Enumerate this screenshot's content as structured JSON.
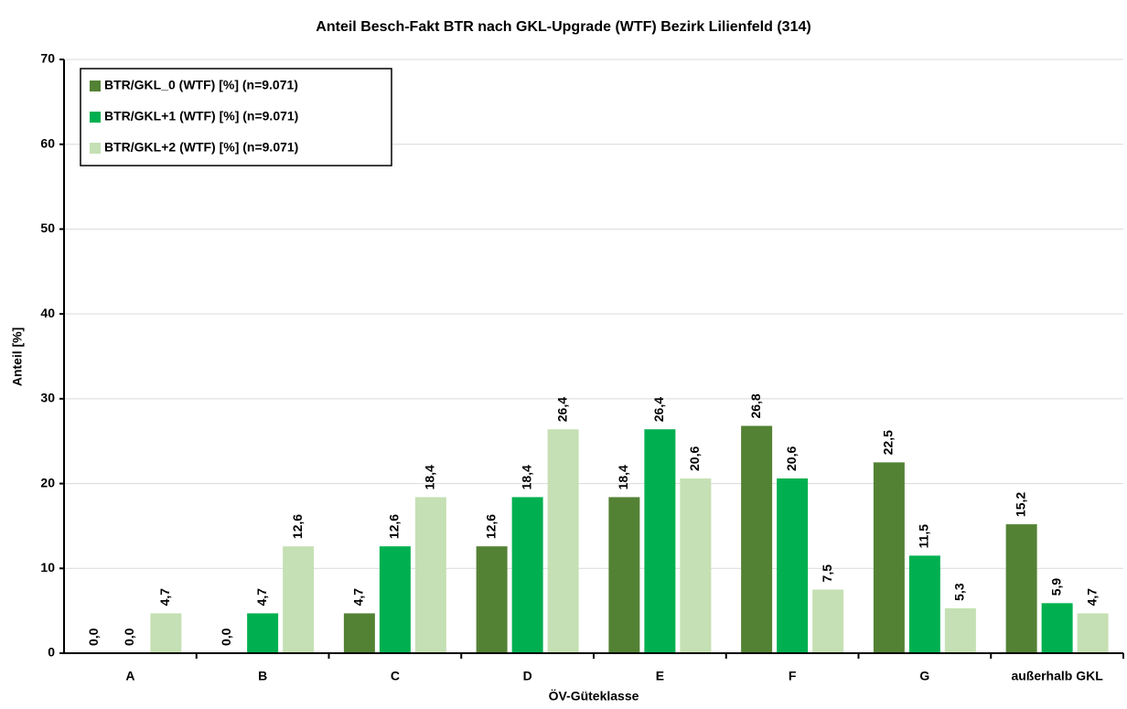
{
  "chart_data": {
    "type": "bar",
    "title": "Anteil Besch-Fakt BTR nach GKL-Upgrade (WTF) Bezirk Lilienfeld (314)",
    "x_label": "ÖV-Güteklasse",
    "y_label": "Anteil [%]",
    "categories": [
      "A",
      "B",
      "C",
      "D",
      "E",
      "F",
      "G",
      "außerhalb GKL"
    ],
    "series": [
      {
        "name": "BTR/GKL_0 (WTF) [%] (n=9.071)",
        "color": "#548235",
        "values": [
          0,
          0,
          4.7,
          12.6,
          18.4,
          26.8,
          22.5,
          15.2
        ],
        "value_labels": [
          "0,0",
          "0,0",
          "4,7",
          "12,6",
          "18,4",
          "26,8",
          "22,5",
          "15,2"
        ]
      },
      {
        "name": "BTR/GKL+1 (WTF) [%] (n=9.071)",
        "color": "#00b050",
        "values": [
          0,
          4.7,
          12.6,
          18.4,
          26.4,
          20.6,
          11.5,
          5.9
        ],
        "value_labels": [
          "0,0",
          "4,7",
          "12,6",
          "18,4",
          "26,4",
          "20,6",
          "11,5",
          "5,9"
        ]
      },
      {
        "name": "BTR/GKL+2 (WTF) [%] (n=9.071)",
        "color": "#c5e0b4",
        "values": [
          4.7,
          12.6,
          18.4,
          26.4,
          20.6,
          7.5,
          5.3,
          4.7
        ],
        "value_labels": [
          "4,7",
          "12,6",
          "18,4",
          "26,4",
          "20,6",
          "7,5",
          "5,3",
          "4,7"
        ]
      }
    ],
    "ylim": [
      0,
      70
    ],
    "yticks": [
      0,
      10,
      20,
      30,
      40,
      50,
      60,
      70
    ],
    "grid": true,
    "legend": "upper left"
  }
}
